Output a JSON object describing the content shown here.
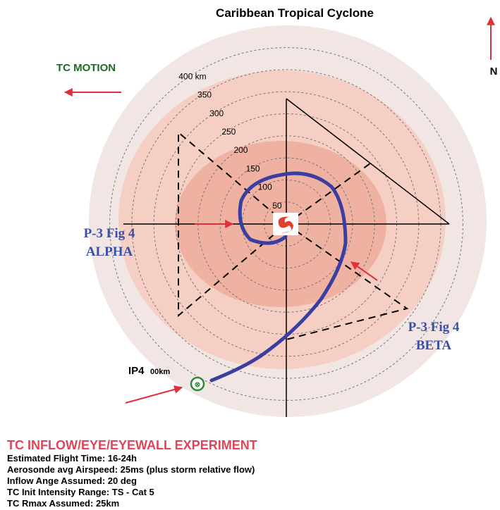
{
  "header": {
    "title": "Caribbean Tropical Cyclone",
    "motion_label": "TC MOTION",
    "north_label": "N"
  },
  "rings": {
    "labels": [
      "50",
      "100",
      "150",
      "200",
      "250",
      "300",
      "350",
      "400 km"
    ]
  },
  "patterns": {
    "alpha": [
      "P-3 Fig 4",
      "ALPHA"
    ],
    "beta": [
      "P-3 Fig 4",
      "BETA"
    ]
  },
  "ip": {
    "parts": [
      "IP4",
      "00km"
    ]
  },
  "info": {
    "heading": "TC INFLOW/EYE/EYEWALL EXPERIMENT",
    "lines": [
      "Estimated Flight Time: 16-24h",
      "Aerosonde avg Airspeed: 25ms (plus storm relative flow)",
      "Inflow Ange Assumed: 20 deg",
      "TC Init Intensity Range: TS - Cat 5",
      "TC Rmax Assumed: 25km"
    ]
  }
}
